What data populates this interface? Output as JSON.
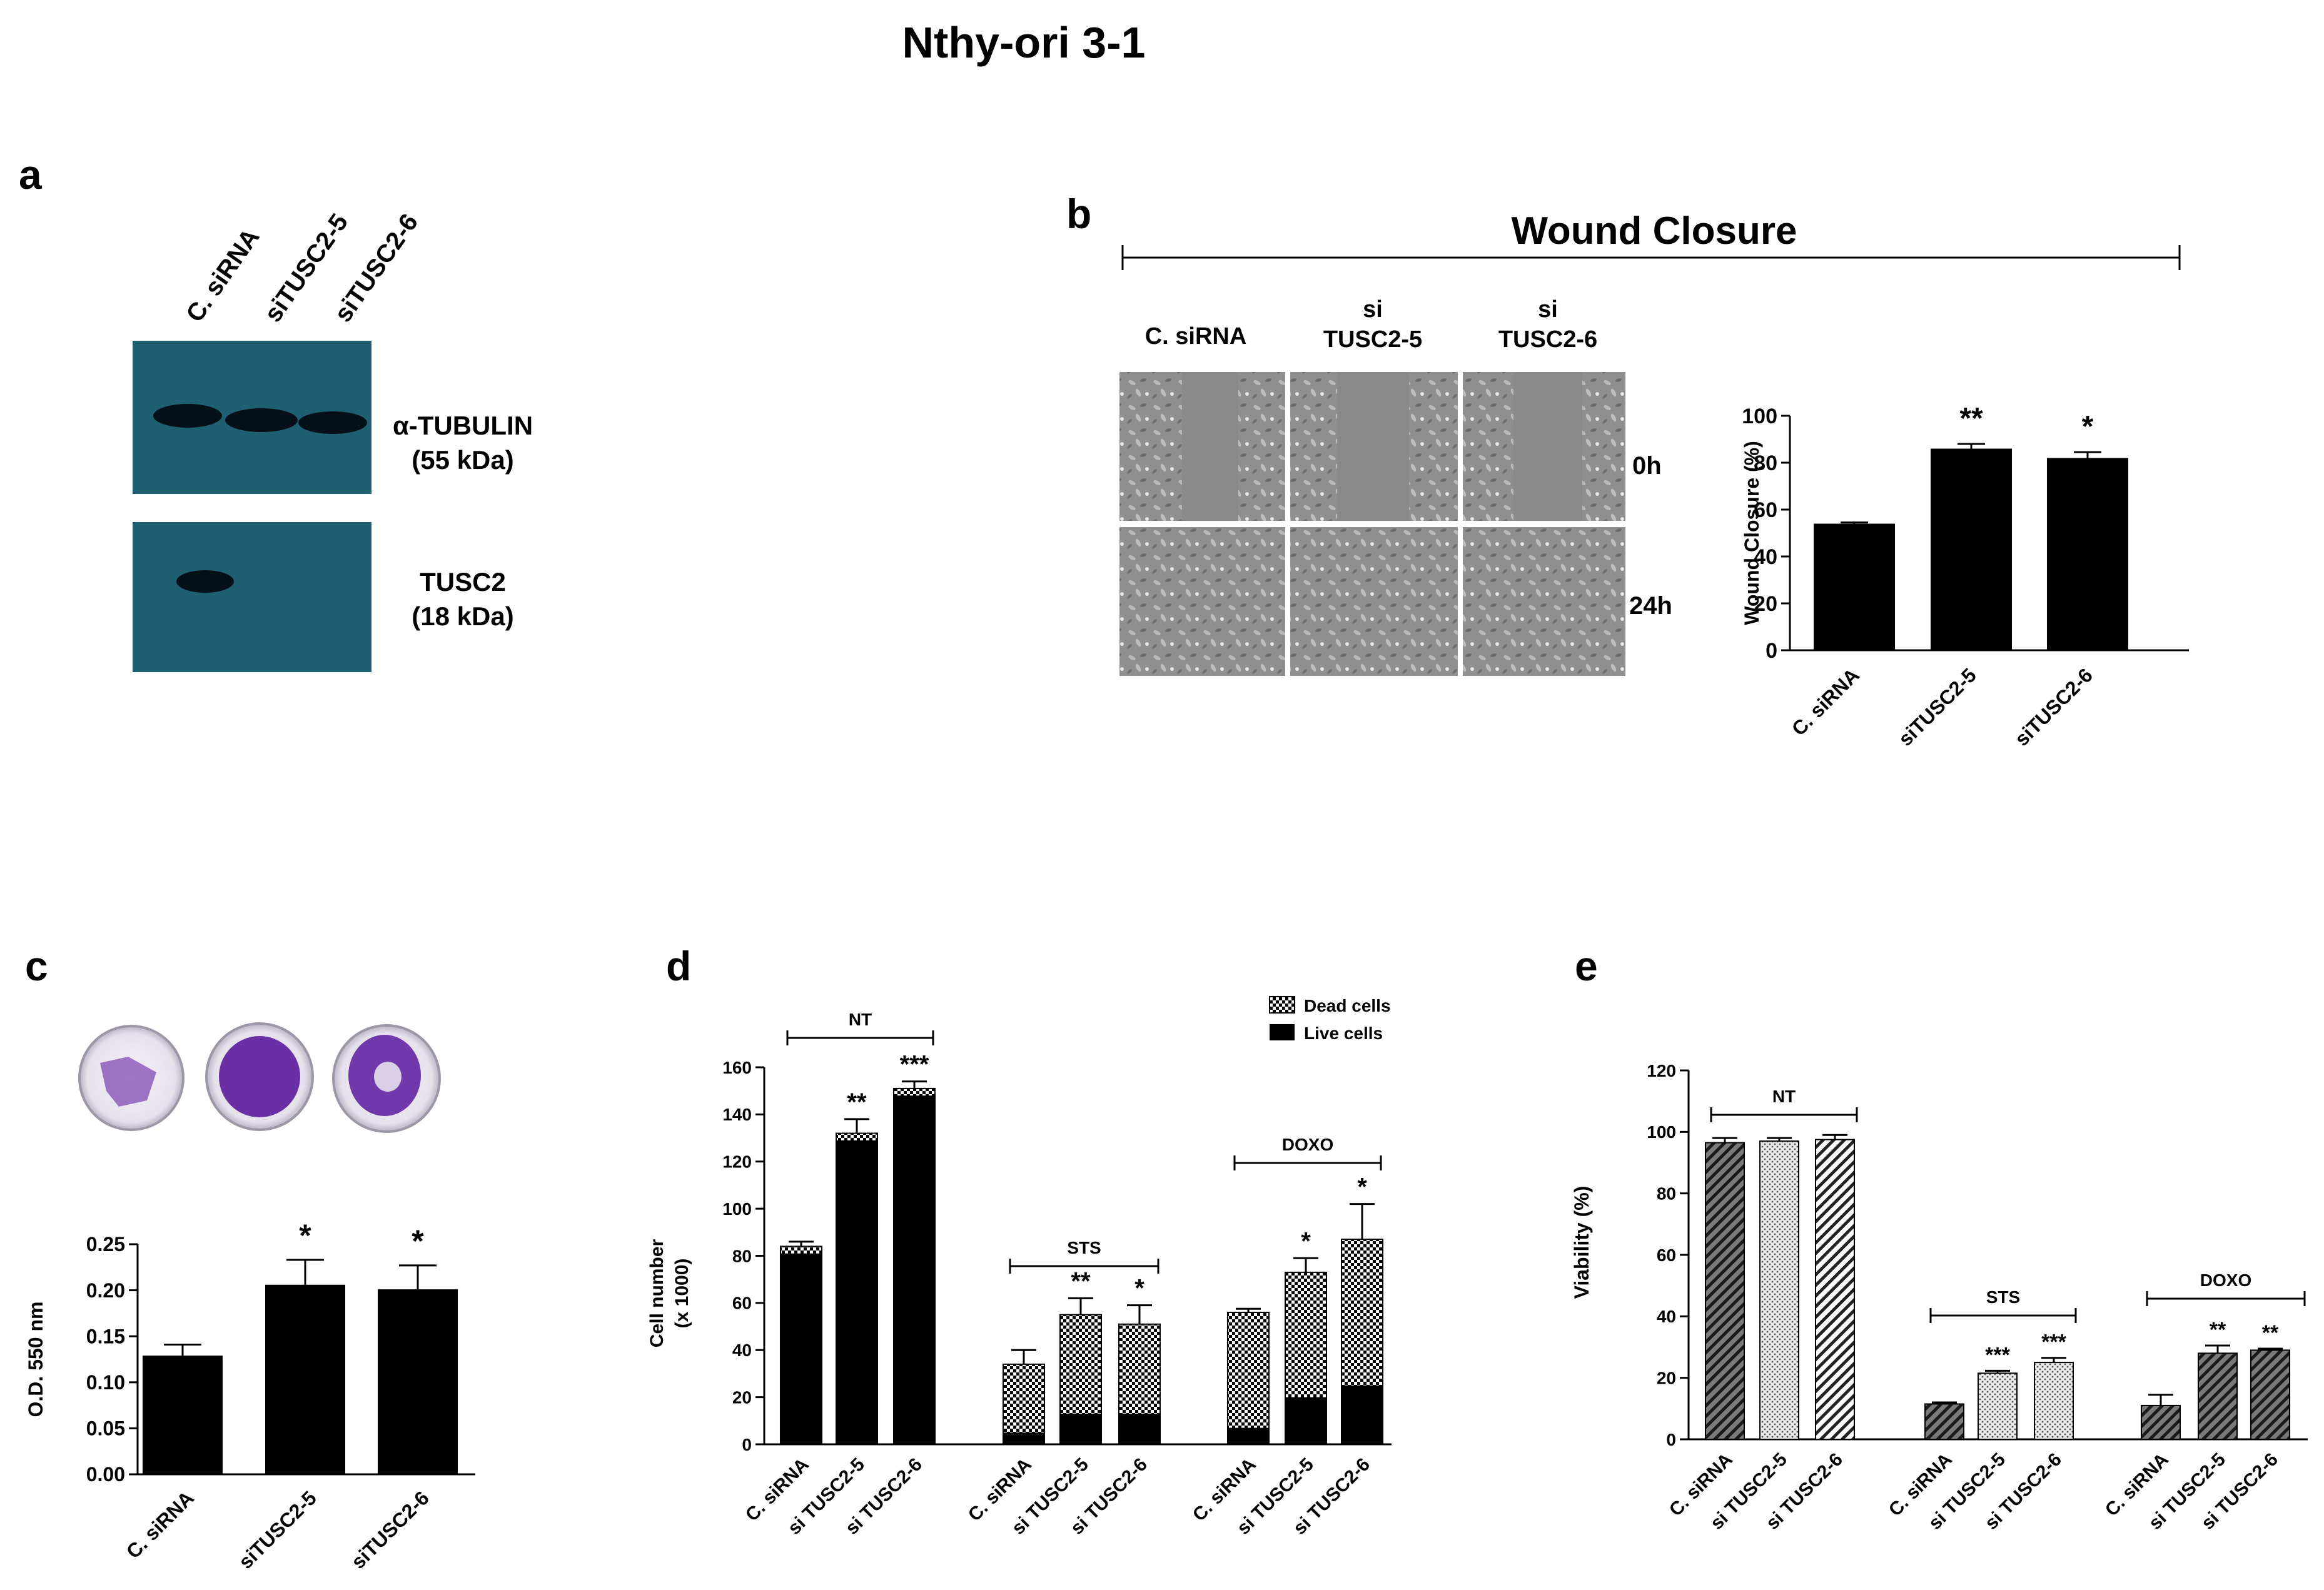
{
  "figure_title": "Nthy-ori 3-1",
  "panel_a": {
    "letter": "a",
    "lanes": [
      "C. siRNA",
      "siTUSC2-5",
      "siTUSC2-6"
    ],
    "blots": [
      {
        "name_line1": "α-TUBULIN",
        "name_line2": "(55 kDa)"
      },
      {
        "name_line1": "TUSC2",
        "name_line2": "(18 kDa)"
      }
    ]
  },
  "panel_b": {
    "letter": "b",
    "heading": "Wound Closure",
    "columns": [
      {
        "line1": "C. siRNA",
        "line2": ""
      },
      {
        "line1": "si",
        "line2": "TUSC2-5"
      },
      {
        "line1": "si",
        "line2": "TUSC2-6"
      }
    ],
    "rows": [
      "0h",
      "24h"
    ]
  },
  "panel_c": {
    "letter": "c"
  },
  "panel_d": {
    "letter": "d"
  },
  "panel_e": {
    "letter": "e"
  },
  "chart_data": [
    {
      "id": "b",
      "type": "bar",
      "categories": [
        "C. siRNA",
        "siTUSC2-5",
        "siTUSC2-6"
      ],
      "values": [
        54,
        86,
        82
      ],
      "errors": [
        0.5,
        2,
        2.5
      ],
      "significance": [
        "",
        "**",
        "*"
      ],
      "ylabel": "Wound Closure (%)",
      "ylim": [
        0,
        100
      ],
      "yticks": [
        0,
        20,
        40,
        60,
        80,
        100
      ]
    },
    {
      "id": "c",
      "type": "bar",
      "categories": [
        "C. siRNA",
        "siTUSC2-5",
        "siTUSC2-6"
      ],
      "values": [
        0.129,
        0.206,
        0.201
      ],
      "errors": [
        0.012,
        0.027,
        0.026
      ],
      "significance": [
        "",
        "*",
        "*"
      ],
      "ylabel": "O.D. 550 nm",
      "ylim": [
        0,
        0.25
      ],
      "yticks": [
        "0.00",
        "0.05",
        "0.10",
        "0.15",
        "0.20",
        "0.25"
      ]
    },
    {
      "id": "d",
      "type": "bar",
      "stacked": true,
      "ylabel_line1": "Cell number",
      "ylabel_line2": "(x 1000)",
      "ylim": [
        0,
        160
      ],
      "yticks": [
        0,
        20,
        40,
        60,
        80,
        100,
        120,
        140,
        160
      ],
      "legend": [
        "Dead cells",
        "Live cells"
      ],
      "groups": [
        {
          "label": "NT",
          "categories": [
            "C. siRNA",
            "si TUSC2-5",
            "si TUSC2-6"
          ],
          "live": [
            81,
            129,
            148
          ],
          "total": [
            84,
            132,
            151
          ],
          "errors": [
            2,
            6,
            3
          ],
          "significance": [
            "",
            "**",
            "***"
          ]
        },
        {
          "label": "STS",
          "categories": [
            "C. siRNA",
            "si TUSC2-5",
            "si TUSC2-6"
          ],
          "live": [
            5,
            13,
            13
          ],
          "total": [
            34,
            55,
            51
          ],
          "errors": [
            6,
            7,
            8
          ],
          "significance": [
            "",
            "**",
            "*"
          ]
        },
        {
          "label": "DOXO",
          "categories": [
            "C. siRNA",
            "si TUSC2-5",
            "si TUSC2-6"
          ],
          "live": [
            7,
            20,
            25
          ],
          "total": [
            56,
            73,
            87
          ],
          "errors": [
            1.5,
            6,
            15
          ],
          "significance": [
            "",
            "*",
            "*"
          ]
        }
      ]
    },
    {
      "id": "e",
      "type": "bar",
      "ylabel": "Viability (%)",
      "ylim": [
        0,
        120
      ],
      "yticks": [
        0,
        20,
        40,
        60,
        80,
        100,
        120
      ],
      "groups": [
        {
          "label": "NT",
          "categories": [
            "C. siRNA",
            "si TUSC2-5",
            "si TUSC2-6"
          ],
          "values": [
            96.5,
            97,
            97.5
          ],
          "errors": [
            1.5,
            1,
            1.5
          ],
          "significance": [
            "",
            "",
            ""
          ]
        },
        {
          "label": "STS",
          "categories": [
            "C. siRNA",
            "si TUSC2-5",
            "si TUSC2-6"
          ],
          "values": [
            11.5,
            21.5,
            25
          ],
          "errors": [
            0.5,
            0.8,
            1.5
          ],
          "significance": [
            "",
            "***",
            "***"
          ]
        },
        {
          "label": "DOXO",
          "categories": [
            "C. siRNA",
            "si TUSC2-5",
            "si TUSC2-6"
          ],
          "values": [
            11,
            28,
            29
          ],
          "errors": [
            3.5,
            2.5,
            0.5
          ],
          "significance": [
            "",
            "**",
            "**"
          ]
        }
      ]
    }
  ]
}
